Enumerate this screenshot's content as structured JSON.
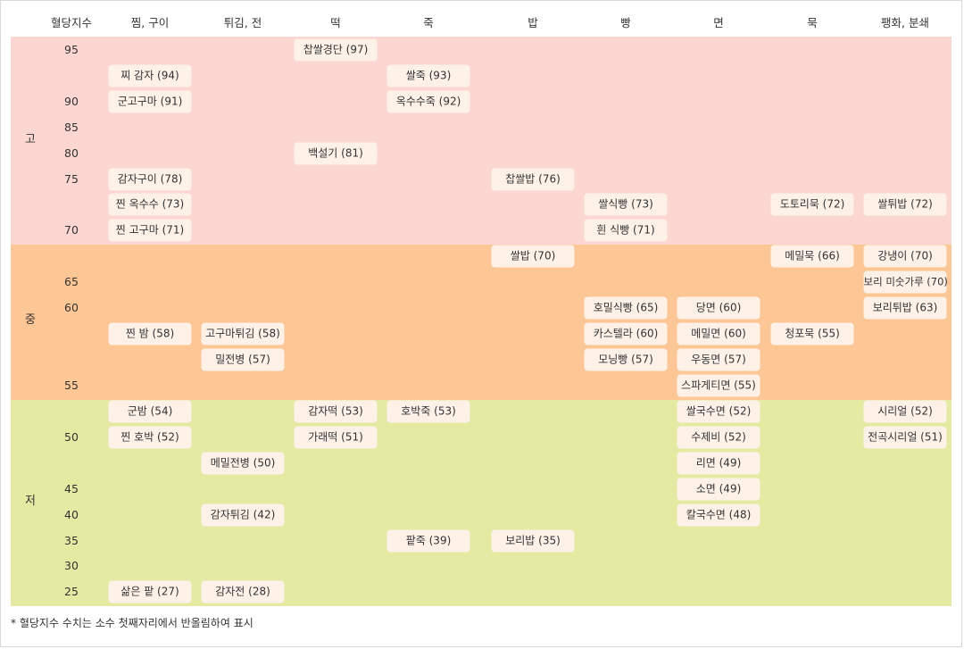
{
  "headers": [
    "혈당지수",
    "찜, 구이",
    "튀김, 전",
    "떡",
    "죽",
    "밥",
    "빵",
    "면",
    "묵",
    "팽화, 분쇄"
  ],
  "levels": [
    "고",
    "중",
    "저"
  ],
  "ticks": [
    "95",
    "90",
    "85",
    "80",
    "75",
    "70",
    "65",
    "60",
    "55",
    "50",
    "45",
    "40",
    "35",
    "30",
    "25"
  ],
  "cells": [
    {
      "label": "찌 감자 (94)",
      "category": "찜, 구이",
      "gi": 94
    },
    {
      "label": "군고구마 (91)",
      "category": "찜, 구이",
      "gi": 91
    },
    {
      "label": "감자구이 (78)",
      "category": "찜, 구이",
      "gi": 78
    },
    {
      "label": "찐 옥수수 (73)",
      "category": "찜, 구이",
      "gi": 73
    },
    {
      "label": "찐 고구마 (71)",
      "category": "찜, 구이",
      "gi": 71
    },
    {
      "label": "찐 밤 (58)",
      "category": "찜, 구이",
      "gi": 58
    },
    {
      "label": "군밤 (54)",
      "category": "찜, 구이",
      "gi": 54
    },
    {
      "label": "찐 호박 (52)",
      "category": "찜, 구이",
      "gi": 52
    },
    {
      "label": "삶은 팥 (27)",
      "category": "찜, 구이",
      "gi": 27
    },
    {
      "label": "고구마튀김 (58)",
      "category": "튀김, 전",
      "gi": 58
    },
    {
      "label": "밀전병 (57)",
      "category": "튀김, 전",
      "gi": 57
    },
    {
      "label": "메밀전병 (50)",
      "category": "튀김, 전",
      "gi": 50
    },
    {
      "label": "감자튀김 (42)",
      "category": "튀김, 전",
      "gi": 42
    },
    {
      "label": "감자전 (28)",
      "category": "튀김, 전",
      "gi": 28
    },
    {
      "label": "찹쌀경단 (97)",
      "category": "떡",
      "gi": 97
    },
    {
      "label": "백설기 (81)",
      "category": "떡",
      "gi": 81
    },
    {
      "label": "감자떡 (53)",
      "category": "떡",
      "gi": 53
    },
    {
      "label": "가래떡 (51)",
      "category": "떡",
      "gi": 51
    },
    {
      "label": "쌀죽 (93)",
      "category": "죽",
      "gi": 93
    },
    {
      "label": "옥수수죽 (92)",
      "category": "죽",
      "gi": 92
    },
    {
      "label": "호박죽 (53)",
      "category": "죽",
      "gi": 53
    },
    {
      "label": "팥죽 (39)",
      "category": "죽",
      "gi": 39
    },
    {
      "label": "찹쌀밥 (76)",
      "category": "밥",
      "gi": 76
    },
    {
      "label": "쌀밥 (70)",
      "category": "밥",
      "gi": 70
    },
    {
      "label": "보리밥 (35)",
      "category": "밥",
      "gi": 35
    },
    {
      "label": "쌀식빵 (73)",
      "category": "빵",
      "gi": 73
    },
    {
      "label": "흰 식빵 (71)",
      "category": "빵",
      "gi": 71
    },
    {
      "label": "호밀식빵 (65)",
      "category": "빵",
      "gi": 65
    },
    {
      "label": "카스텔라 (60)",
      "category": "빵",
      "gi": 60
    },
    {
      "label": "모닝빵 (57)",
      "category": "빵",
      "gi": 57
    },
    {
      "label": "당면 (60)",
      "category": "면",
      "gi": 60
    },
    {
      "label": "메밀면 (60)",
      "category": "면",
      "gi": 60
    },
    {
      "label": "우동면 (57)",
      "category": "면",
      "gi": 57
    },
    {
      "label": "스파게티면 (55)",
      "category": "면",
      "gi": 55
    },
    {
      "label": "쌀국수면 (52)",
      "category": "면",
      "gi": 52
    },
    {
      "label": "수제비 (52)",
      "category": "면",
      "gi": 52
    },
    {
      "label": "리면 (49)",
      "category": "면",
      "gi": 49
    },
    {
      "label": "소면 (49)",
      "category": "면",
      "gi": 49
    },
    {
      "label": "칼국수면 (48)",
      "category": "면",
      "gi": 48
    },
    {
      "label": "도토리묵 (72)",
      "category": "묵",
      "gi": 72
    },
    {
      "label": "메밀묵 (66)",
      "category": "묵",
      "gi": 66
    },
    {
      "label": "청포묵 (55)",
      "category": "묵",
      "gi": 55
    },
    {
      "label": "쌀튀밥 (72)",
      "category": "팽화, 분쇄",
      "gi": 72
    },
    {
      "label": "강냉이 (70)",
      "category": "팽화, 분쇄",
      "gi": 70
    },
    {
      "label": "보리 미숫가루 (70)",
      "category": "팽화, 분쇄",
      "gi": 70
    },
    {
      "label": "보리튀밥 (63)",
      "category": "팽화, 분쇄",
      "gi": 63
    },
    {
      "label": "시리얼 (52)",
      "category": "팽화, 분쇄",
      "gi": 52
    },
    {
      "label": "전곡시리얼 (51)",
      "category": "팽화, 분쇄",
      "gi": 51
    }
  ],
  "footnote": "* 혈당지수 수치는 소수 첫째자리에서 반올림하여 표시",
  "colors": {
    "high": "#fcd7d2",
    "mid": "#fdc795",
    "low": "#e5eaa3",
    "cell": "#fdf1e8"
  }
}
